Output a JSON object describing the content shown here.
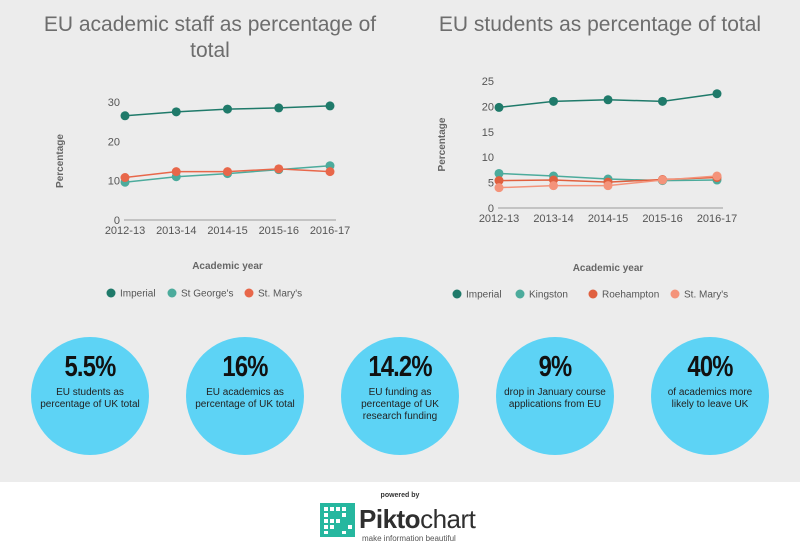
{
  "chart_data": [
    {
      "type": "line",
      "title": "EU academic staff as percentage of total",
      "xlabel": "Academic year",
      "ylabel": "Percentage",
      "categories": [
        "2012-13",
        "2013-14",
        "2014-15",
        "2015-16",
        "2016-17"
      ],
      "ylim": [
        0,
        30
      ],
      "yticks": [
        0,
        10,
        20,
        30
      ],
      "grid": false,
      "legend_position": "bottom",
      "series": [
        {
          "name": "Imperial",
          "color": "#1f7a6a",
          "values": [
            26.5,
            27.5,
            28.2,
            28.5,
            29.0
          ]
        },
        {
          "name": "St George's",
          "color": "#4cab9c",
          "values": [
            9.6,
            11.0,
            11.8,
            12.8,
            13.8
          ]
        },
        {
          "name": "St. Mary's",
          "color": "#e8674a",
          "values": [
            10.8,
            12.3,
            12.3,
            13.0,
            12.3
          ]
        }
      ]
    },
    {
      "type": "line",
      "title": "EU students as percentage of total",
      "xlabel": "Academic year",
      "ylabel": "Percentage",
      "categories": [
        "2012-13",
        "2013-14",
        "2014-15",
        "2015-16",
        "2016-17"
      ],
      "ylim": [
        0,
        25
      ],
      "yticks": [
        0,
        5,
        10,
        15,
        20,
        25
      ],
      "grid": false,
      "legend_position": "bottom",
      "series": [
        {
          "name": "Imperial",
          "color": "#1f7a6a",
          "values": [
            19.8,
            21.0,
            21.3,
            21.0,
            22.5
          ]
        },
        {
          "name": "Kingston",
          "color": "#4cab9c",
          "values": [
            6.8,
            6.3,
            5.7,
            5.4,
            5.5
          ]
        },
        {
          "name": "Roehampton",
          "color": "#e0603f",
          "values": [
            5.4,
            5.5,
            5.1,
            5.6,
            6.0
          ]
        },
        {
          "name": "St. Mary's",
          "color": "#f4937a",
          "values": [
            4.0,
            4.4,
            4.4,
            5.5,
            6.3
          ]
        }
      ]
    }
  ],
  "stats": [
    {
      "value": "5.5%",
      "text": "EU students as percentage of UK total"
    },
    {
      "value": "16%",
      "text": "EU academics as percentage of UK total"
    },
    {
      "value": "14.2%",
      "text": "EU funding as percentage of UK research funding"
    },
    {
      "value": "9%",
      "text": "drop in January course applications from EU"
    },
    {
      "value": "40%",
      "text": "of academics more likely to leave UK"
    }
  ],
  "footer": {
    "powered_by": "powered by",
    "brand_bold": "Pikto",
    "brand_thin": "chart",
    "tagline": "make information beautiful"
  },
  "colors": {
    "panel_bg": "#ececec",
    "bubble": "#5dd3f5",
    "logo_teal": "#26b79f"
  }
}
